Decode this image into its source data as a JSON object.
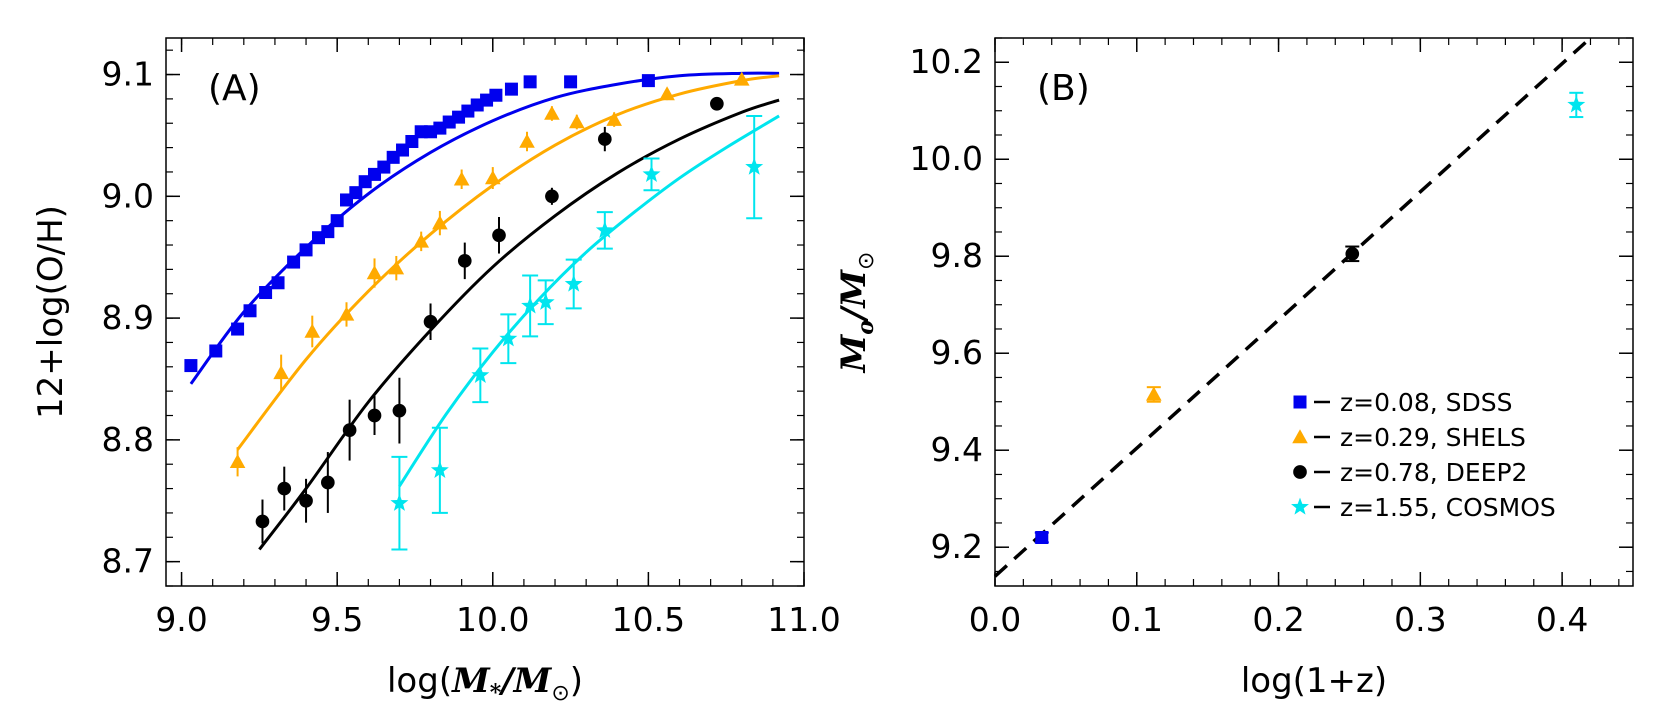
{
  "chart_data": [
    {
      "type": "scatter",
      "panel_label": "(A)",
      "xlabel": "log(M*/M⊙)",
      "ylabel": "12+log(O/H)",
      "xlim": [
        8.95,
        11.0
      ],
      "ylim": [
        8.68,
        9.13
      ],
      "xticks": [
        "9.0",
        "9.5",
        "10.0",
        "10.5",
        "11.0"
      ],
      "yticks": [
        "8.7",
        "8.8",
        "8.9",
        "9.0",
        "9.1"
      ],
      "series": [
        {
          "marker": "square",
          "color": "#0000ee",
          "x": [
            9.03,
            9.11,
            9.18,
            9.22,
            9.27,
            9.31,
            9.36,
            9.4,
            9.44,
            9.47,
            9.5,
            9.53,
            9.56,
            9.59,
            9.62,
            9.65,
            9.68,
            9.71,
            9.74,
            9.77,
            9.8,
            9.83,
            9.86,
            9.89,
            9.92,
            9.95,
            9.98,
            10.01,
            10.06,
            10.12,
            10.25,
            10.5
          ],
          "y": [
            8.861,
            8.873,
            8.891,
            8.906,
            8.921,
            8.929,
            8.946,
            8.956,
            8.966,
            8.971,
            8.98,
            8.997,
            9.003,
            9.012,
            9.018,
            9.024,
            9.032,
            9.038,
            9.045,
            9.053,
            9.053,
            9.056,
            9.061,
            9.065,
            9.07,
            9.075,
            9.079,
            9.083,
            9.088,
            9.094,
            9.094,
            9.095
          ],
          "fit_x": [
            9.03,
            9.2,
            9.4,
            9.6,
            9.8,
            10.0,
            10.2,
            10.4,
            10.6,
            10.8,
            10.92
          ],
          "fit_y": [
            8.846,
            8.905,
            8.958,
            9.002,
            9.036,
            9.062,
            9.081,
            9.092,
            9.099,
            9.101,
            9.101
          ]
        },
        {
          "marker": "triangle",
          "color": "#ffaa00",
          "x": [
            9.18,
            9.32,
            9.42,
            9.53,
            9.62,
            9.69,
            9.77,
            9.83,
            9.9,
            10.0,
            10.11,
            10.19,
            10.27,
            10.39,
            10.56,
            10.8
          ],
          "y": [
            8.782,
            8.855,
            8.889,
            8.903,
            8.937,
            8.941,
            8.963,
            8.978,
            9.014,
            9.015,
            9.045,
            9.068,
            9.061,
            9.063,
            9.084,
            9.096
          ],
          "yerr": [
            0.012,
            0.015,
            0.013,
            0.01,
            0.012,
            0.01,
            0.008,
            0.01,
            0.008,
            0.009,
            0.008,
            0.006,
            0.006,
            0.006,
            0.005,
            0.004
          ],
          "fit_x": [
            9.18,
            9.4,
            9.6,
            9.8,
            10.0,
            10.2,
            10.4,
            10.6,
            10.8,
            10.92
          ],
          "fit_y": [
            8.792,
            8.866,
            8.922,
            8.969,
            9.009,
            9.042,
            9.067,
            9.084,
            9.095,
            9.099
          ]
        },
        {
          "marker": "circle",
          "color": "#000000",
          "x": [
            9.26,
            9.33,
            9.4,
            9.47,
            9.54,
            9.62,
            9.7,
            9.8,
            9.91,
            10.02,
            10.19,
            10.36,
            10.72
          ],
          "y": [
            8.733,
            8.76,
            8.75,
            8.765,
            8.808,
            8.82,
            8.824,
            8.897,
            8.947,
            8.968,
            9.0,
            9.047,
            9.076
          ],
          "yerr": [
            0.018,
            0.018,
            0.018,
            0.025,
            0.025,
            0.016,
            0.027,
            0.015,
            0.015,
            0.015,
            0.007,
            0.01,
            0.004
          ],
          "fit_x": [
            9.25,
            9.4,
            9.6,
            9.8,
            10.0,
            10.2,
            10.4,
            10.6,
            10.8,
            10.92
          ],
          "fit_y": [
            8.71,
            8.76,
            8.831,
            8.89,
            8.942,
            8.984,
            9.019,
            9.047,
            9.069,
            9.079
          ]
        },
        {
          "marker": "star",
          "color": "#00e5ee",
          "x": [
            9.7,
            9.83,
            9.96,
            10.05,
            10.12,
            10.17,
            10.26,
            10.36,
            10.51,
            10.84
          ],
          "y": [
            8.748,
            8.775,
            8.853,
            8.883,
            8.91,
            8.913,
            8.928,
            8.972,
            9.018,
            9.024
          ],
          "yerr": [
            0.038,
            0.035,
            0.022,
            0.02,
            0.025,
            0.018,
            0.02,
            0.015,
            0.013,
            0.042
          ],
          "fit_x": [
            9.7,
            9.85,
            10.0,
            10.15,
            10.3,
            10.45,
            10.6,
            10.75,
            10.92
          ],
          "fit_y": [
            8.762,
            8.821,
            8.872,
            8.916,
            8.954,
            8.986,
            9.015,
            9.04,
            9.066
          ]
        }
      ]
    },
    {
      "type": "scatter",
      "panel_label": "(B)",
      "xlabel": "log(1+z)",
      "ylabel": "Mo/M⊙",
      "xlim": [
        0.0,
        0.45
      ],
      "ylim": [
        9.12,
        10.25
      ],
      "xticks": [
        "0.0",
        "0.1",
        "0.2",
        "0.3",
        "0.4"
      ],
      "yticks": [
        "9.2",
        "9.4",
        "9.6",
        "9.8",
        "10.0",
        "10.2"
      ],
      "line": {
        "style": "dashed",
        "color": "#000000",
        "x": [
          0.0,
          0.42
        ],
        "y": [
          9.14,
          10.25
        ]
      },
      "points": [
        {
          "marker": "square",
          "color": "#0000ee",
          "x": 0.033,
          "y": 9.22,
          "yerr": 0.01
        },
        {
          "marker": "triangle",
          "color": "#ffaa00",
          "x": 0.112,
          "y": 9.515,
          "yerr": 0.015
        },
        {
          "marker": "circle",
          "color": "#000000",
          "x": 0.252,
          "y": 9.805,
          "yerr": 0.015
        },
        {
          "marker": "star",
          "color": "#00e5ee",
          "x": 0.41,
          "y": 10.112,
          "yerr": 0.025
        }
      ],
      "legend": {
        "position": "bottom-right",
        "entries": [
          {
            "marker": "square",
            "color": "#0000ee",
            "label": "z=0.08, SDSS"
          },
          {
            "marker": "triangle",
            "color": "#ffaa00",
            "label": "z=0.29, SHELS"
          },
          {
            "marker": "circle",
            "color": "#000000",
            "label": "z=0.78, DEEP2"
          },
          {
            "marker": "star",
            "color": "#00e5ee",
            "label": "z=1.55, COSMOS"
          }
        ]
      }
    }
  ]
}
